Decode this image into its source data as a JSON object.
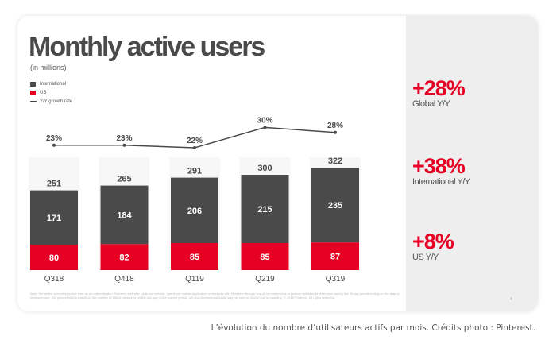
{
  "slide": {
    "title": "Monthly active users",
    "subtitle": "(in millions)",
    "legend": {
      "international": "International",
      "us": "US",
      "growth": "Y/Y growth rate"
    },
    "footnote": "Note: We define a monthly active user as an authenticated Pinterest user who visits our website, opens our mobile application or interacts with Pinterest through one of our extensions or partner websites at least once during the 30-day period ending on the date of measurement. We present MAUs based on the number of MAUs measured on the last day of the current period. US and International totals may not sum to Global due to rounding. © 2019 Pinterest. All rights reserved.",
    "page_number": "4",
    "stats": [
      {
        "value": "+28%",
        "label": "Global Y/Y"
      },
      {
        "value": "+38%",
        "label": "International Y/Y"
      },
      {
        "value": "+8%",
        "label": "US Y/Y"
      }
    ]
  },
  "caption": "L’évolution du nombre d’utilisateurs actifs par mois. Crédits photo : Pinterest.",
  "colors": {
    "international": "#4a4a4a",
    "us": "#e60023",
    "growth_line": "#4a4a4a",
    "stat_accent": "#e60023"
  },
  "chart_data": {
    "type": "bar",
    "stacked": true,
    "categories": [
      "Q318",
      "Q418",
      "Q119",
      "Q219",
      "Q319"
    ],
    "series": [
      {
        "name": "US",
        "values": [
          80,
          82,
          85,
          85,
          87
        ],
        "color": "#e60023"
      },
      {
        "name": "International",
        "values": [
          171,
          184,
          206,
          215,
          235
        ],
        "color": "#4a4a4a"
      }
    ],
    "totals": [
      251,
      265,
      291,
      300,
      322
    ],
    "line_series": {
      "name": "Y/Y growth rate",
      "values": [
        23,
        23,
        22,
        30,
        28
      ],
      "labels": [
        "23%",
        "23%",
        "22%",
        "30%",
        "28%"
      ]
    },
    "ylabel": "(in millions)",
    "ylim": [
      0,
      322
    ]
  }
}
